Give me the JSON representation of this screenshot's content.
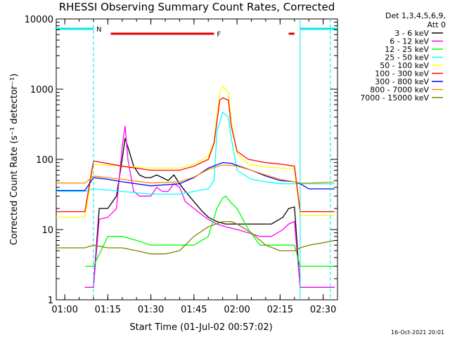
{
  "chart_data": {
    "type": "line",
    "title": "RHESSI Observing Summary Count Rates, Corrected",
    "xlabel": "Start Time (01-Jul-02 00:57:02)",
    "ylabel": "Corrected Count Rate (s⁻¹ detector⁻¹)",
    "y_scale": "log",
    "ylim": [
      1,
      10000
    ],
    "xlim": [
      "00:57:02",
      "02:35:00"
    ],
    "x_ticks": [
      "01:00",
      "01:15",
      "01:30",
      "01:45",
      "02:00",
      "02:15",
      "02:30"
    ],
    "y_ticks": [
      "1",
      "10",
      "100",
      "1000",
      "10000"
    ],
    "legend_title": [
      "Det 1,3,4,5,6,9,",
      "Att 0"
    ],
    "legend_position": "right",
    "footer": "16-Oct-2021 20:01",
    "flags": [
      {
        "label": "N",
        "color": "#00e5ee",
        "segments": [
          [
            "00:57:02",
            "01:10:00"
          ],
          [
            "02:22:00",
            "02:35:00"
          ]
        ]
      },
      {
        "label": "F",
        "color": "#e00000",
        "segments": [
          [
            "01:16:00",
            "01:52:00"
          ],
          [
            "02:18:00",
            "02:20:00"
          ]
        ]
      }
    ],
    "vlines": [
      "01:10:00",
      "02:22:00",
      "02:32:30"
    ],
    "series": [
      {
        "name": "3 - 6 keV",
        "color": "#000000",
        "x": [
          "01:07",
          "01:10",
          "01:12",
          "01:15",
          "01:18",
          "01:20",
          "01:21",
          "01:22",
          "01:24",
          "01:26",
          "01:28",
          "01:30",
          "01:32",
          "01:34",
          "01:36",
          "01:38",
          "01:40",
          "01:42",
          "01:45",
          "01:48",
          "01:50",
          "01:53",
          "01:56",
          "02:00",
          "02:04",
          "02:08",
          "02:12",
          "02:16",
          "02:18",
          "02:20",
          "02:22",
          "02:24",
          "02:26",
          "02:28",
          "02:30",
          "02:32",
          "02:34"
        ],
        "y": [
          1.5,
          1.5,
          20,
          20,
          30,
          100,
          200,
          150,
          80,
          60,
          55,
          55,
          60,
          55,
          50,
          60,
          45,
          35,
          25,
          18,
          15,
          13,
          12,
          12,
          12,
          12,
          12,
          15,
          20,
          21,
          1.5,
          1.5,
          1.5,
          1.5,
          1.5,
          1.5,
          1.5
        ]
      },
      {
        "name": "6 - 12 keV",
        "color": "#ff00ff",
        "x": [
          "01:07",
          "01:10",
          "01:12",
          "01:15",
          "01:18",
          "01:20",
          "01:21",
          "01:22",
          "01:24",
          "01:26",
          "01:28",
          "01:30",
          "01:32",
          "01:34",
          "01:36",
          "01:38",
          "01:40",
          "01:42",
          "01:45",
          "01:48",
          "01:50",
          "01:53",
          "01:56",
          "02:00",
          "02:04",
          "02:08",
          "02:12",
          "02:16",
          "02:18",
          "02:20",
          "02:22",
          "02:24",
          "02:26",
          "02:28",
          "02:30",
          "02:32",
          "02:34"
        ],
        "y": [
          1.5,
          1.5,
          14,
          15,
          20,
          150,
          300,
          100,
          35,
          30,
          30,
          30,
          40,
          35,
          35,
          45,
          40,
          25,
          20,
          16,
          14,
          12,
          11,
          10,
          9,
          8,
          8,
          10,
          12,
          13,
          1.5,
          1.5,
          1.5,
          1.5,
          1.5,
          1.5,
          1.5
        ]
      },
      {
        "name": "12 - 25 keV",
        "color": "#00ff00",
        "x": [
          "01:07",
          "01:10",
          "01:15",
          "01:20",
          "01:25",
          "01:30",
          "01:35",
          "01:40",
          "01:45",
          "01:50",
          "01:53",
          "01:55",
          "01:56",
          "01:58",
          "02:00",
          "02:04",
          "02:08",
          "02:12",
          "02:16",
          "02:20",
          "02:22",
          "02:24",
          "02:26",
          "02:28",
          "02:30",
          "02:32",
          "02:34"
        ],
        "y": [
          3,
          3,
          8,
          8,
          7,
          6,
          6,
          6,
          6,
          8,
          20,
          28,
          30,
          24,
          20,
          10,
          6,
          6,
          6,
          6,
          3,
          3,
          3,
          3,
          3,
          3,
          3
        ]
      },
      {
        "name": "25 - 50 keV",
        "color": "#00ffff",
        "x": [
          "00:57",
          "01:07",
          "01:10",
          "01:20",
          "01:30",
          "01:40",
          "01:45",
          "01:50",
          "01:52",
          "01:53",
          "01:55",
          "01:57",
          "01:58",
          "02:00",
          "02:05",
          "02:10",
          "02:15",
          "02:20",
          "02:22",
          "02:25",
          "02:30",
          "02:34"
        ],
        "y": [
          35,
          35,
          38,
          35,
          32,
          32,
          35,
          38,
          50,
          250,
          470,
          400,
          200,
          70,
          52,
          48,
          45,
          45,
          45,
          45,
          45,
          45
        ]
      },
      {
        "name": "50 - 100 keV",
        "color": "#ffff00",
        "x": [
          "00:57",
          "01:07",
          "01:10",
          "01:20",
          "01:30",
          "01:40",
          "01:45",
          "01:50",
          "01:52",
          "01:54",
          "01:55",
          "01:57",
          "01:58",
          "02:00",
          "02:04",
          "02:10",
          "02:16",
          "02:20",
          "02:22",
          "02:25",
          "02:30",
          "02:34"
        ],
        "y": [
          15,
          15,
          85,
          80,
          75,
          75,
          85,
          110,
          180,
          900,
          1100,
          900,
          350,
          120,
          85,
          78,
          75,
          72,
          16,
          16,
          16,
          16
        ]
      },
      {
        "name": "100 - 300 keV",
        "color": "#ff0000",
        "x": [
          "00:57",
          "01:07",
          "01:10",
          "01:20",
          "01:30",
          "01:40",
          "01:45",
          "01:50",
          "01:52",
          "01:54",
          "01:55",
          "01:57",
          "01:58",
          "02:00",
          "02:04",
          "02:10",
          "02:16",
          "02:20",
          "02:22",
          "02:25",
          "02:30",
          "02:34"
        ],
        "y": [
          18,
          18,
          95,
          80,
          70,
          70,
          80,
          100,
          170,
          700,
          750,
          700,
          300,
          130,
          100,
          90,
          85,
          80,
          18,
          18,
          18,
          18
        ]
      },
      {
        "name": "300 - 800 keV",
        "color": "#0000ff",
        "x": [
          "00:57",
          "01:07",
          "01:10",
          "01:15",
          "01:20",
          "01:30",
          "01:40",
          "01:45",
          "01:50",
          "01:55",
          "01:58",
          "02:00",
          "02:05",
          "02:10",
          "02:15",
          "02:20",
          "02:22",
          "02:25",
          "02:30",
          "02:34"
        ],
        "y": [
          36,
          36,
          55,
          52,
          48,
          42,
          45,
          55,
          75,
          90,
          88,
          82,
          70,
          58,
          50,
          48,
          45,
          38,
          38,
          38
        ]
      },
      {
        "name": "800 - 7000 keV",
        "color": "#ff8c00",
        "x": [
          "00:57",
          "01:07",
          "01:10",
          "01:15",
          "01:20",
          "01:30",
          "01:40",
          "01:45",
          "01:50",
          "01:55",
          "01:58",
          "02:00",
          "02:05",
          "02:10",
          "02:15",
          "02:20",
          "02:22",
          "02:25",
          "02:30",
          "02:34"
        ],
        "y": [
          46,
          46,
          58,
          55,
          52,
          46,
          48,
          56,
          72,
          83,
          82,
          80,
          70,
          60,
          52,
          48,
          46,
          46,
          47,
          48
        ]
      },
      {
        "name": "7000 - 15000 keV",
        "color": "#808000",
        "x": [
          "00:57",
          "01:07",
          "01:10",
          "01:15",
          "01:20",
          "01:25",
          "01:30",
          "01:35",
          "01:40",
          "01:45",
          "01:50",
          "01:55",
          "01:58",
          "02:00",
          "02:05",
          "02:10",
          "02:15",
          "02:20",
          "02:22",
          "02:25",
          "02:30",
          "02:34"
        ],
        "y": [
          5.5,
          5.5,
          6,
          5.5,
          5.5,
          5,
          4.5,
          4.5,
          5,
          8,
          11,
          13,
          13,
          12,
          9,
          6,
          5,
          5,
          5.5,
          6,
          6.5,
          7
        ]
      }
    ]
  }
}
